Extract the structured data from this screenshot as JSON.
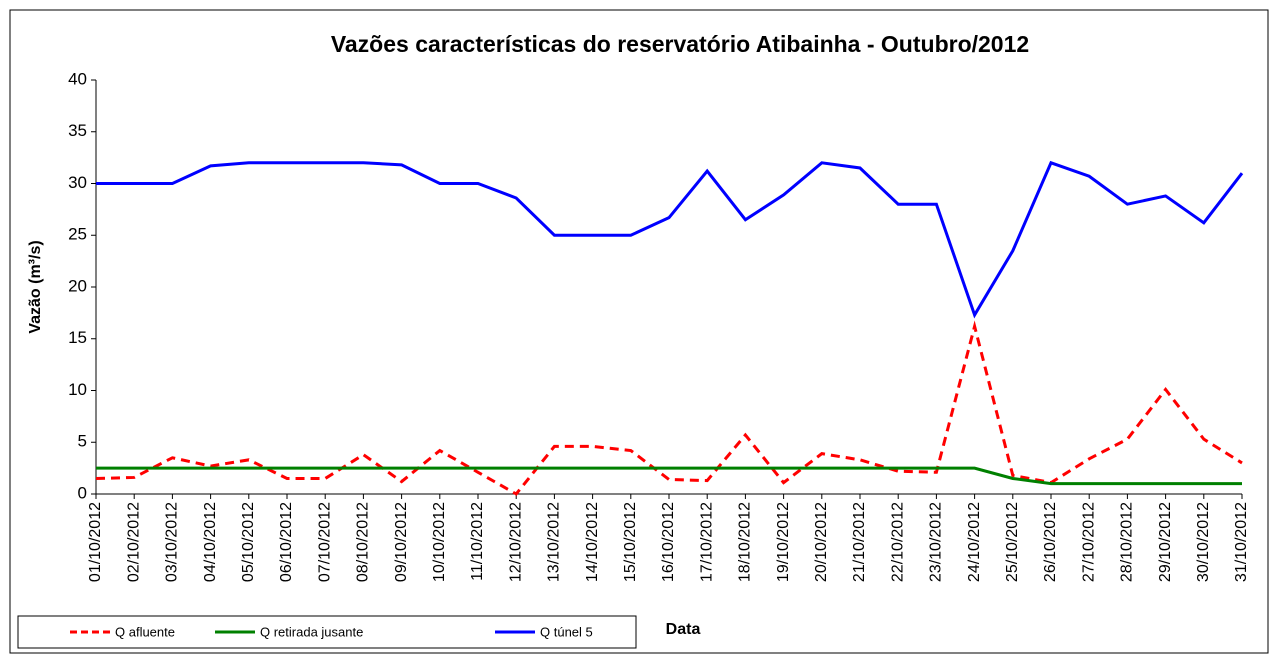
{
  "chart_data": {
    "type": "line",
    "title": "Vazões características do reservatório Atibainha - Outubro/2012",
    "x_label": "Data",
    "y_label": "Vazão (m³/s)",
    "categories": [
      "01/10/2012",
      "02/10/2012",
      "03/10/2012",
      "04/10/2012",
      "05/10/2012",
      "06/10/2012",
      "07/10/2012",
      "08/10/2012",
      "09/10/2012",
      "10/10/2012",
      "11/10/2012",
      "12/10/2012",
      "13/10/2012",
      "14/10/2012",
      "15/10/2012",
      "16/10/2012",
      "17/10/2012",
      "18/10/2012",
      "19/10/2012",
      "20/10/2012",
      "21/10/2012",
      "22/10/2012",
      "23/10/2012",
      "24/10/2012",
      "25/10/2012",
      "26/10/2012",
      "27/10/2012",
      "28/10/2012",
      "29/10/2012",
      "30/10/2012",
      "31/10/2012"
    ],
    "series": [
      {
        "name": "Q afluente",
        "color": "#ff0000",
        "dashed": true,
        "values": [
          1.5,
          1.6,
          3.5,
          2.7,
          3.3,
          1.5,
          1.5,
          3.8,
          1.2,
          4.2,
          2.1,
          0,
          4.6,
          4.6,
          4.2,
          1.4,
          1.3,
          5.7,
          1.1,
          3.9,
          3.3,
          2.2,
          2.1,
          16.2,
          1.8,
          1.1,
          3.4,
          5.3,
          10.1,
          5.3,
          3.0
        ]
      },
      {
        "name": "Q retirada jusante",
        "color": "#008000",
        "dashed": false,
        "values": [
          2.5,
          2.5,
          2.5,
          2.5,
          2.5,
          2.5,
          2.5,
          2.5,
          2.5,
          2.5,
          2.5,
          2.5,
          2.5,
          2.5,
          2.5,
          2.5,
          2.5,
          2.5,
          2.5,
          2.5,
          2.5,
          2.5,
          2.5,
          2.5,
          1.5,
          1.0,
          1.0,
          1.0,
          1.0,
          1.0,
          1.0
        ]
      },
      {
        "name": "Q túnel 5",
        "color": "#0000ff",
        "dashed": false,
        "values": [
          30,
          30,
          30,
          31.7,
          32,
          32,
          32,
          32,
          31.8,
          30,
          30,
          28.6,
          25,
          25,
          25,
          26.7,
          31.2,
          26.5,
          28.9,
          32,
          31.5,
          28,
          28,
          17.3,
          23.5,
          32,
          30.7,
          28,
          28.8,
          26.2,
          31
        ]
      }
    ],
    "ylim": [
      0,
      40
    ],
    "yticks": [
      0,
      5,
      10,
      15,
      20,
      25,
      30,
      35,
      40
    ],
    "grid": false
  }
}
